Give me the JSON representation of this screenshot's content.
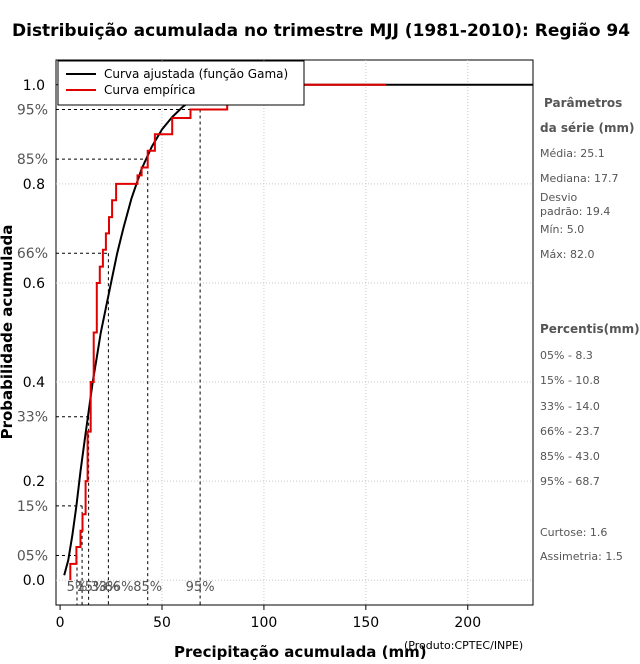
{
  "chart_data": {
    "type": "line",
    "title": "Distribuição acumulada no trimestre MJJ (1981-2010): Região 94",
    "xlabel": "Precipitação acumulada (mm)",
    "ylabel": "Probabilidade acumulada",
    "source": "(Produto:CPTEC/INPE)",
    "xlim": [
      -2,
      232
    ],
    "ylim": [
      -0.05,
      1.05
    ],
    "x_ticks": [
      0,
      50,
      100,
      150,
      200
    ],
    "y_ticks": [
      0.0,
      0.2,
      0.4,
      0.6,
      0.8,
      1.0
    ],
    "y_tick_labels": [
      "0.0",
      "0.2",
      "0.4",
      "0.6",
      "0.8",
      "1.0"
    ],
    "series": [
      {
        "name": "Curva ajustada (função Gama)",
        "color": "#000000",
        "x": [
          2,
          4,
          6,
          8,
          10,
          12,
          14,
          16,
          18,
          20,
          22,
          25,
          28,
          31,
          35,
          40,
          45,
          50,
          55,
          60,
          65,
          70,
          75,
          80,
          90,
          100,
          120,
          140,
          160,
          180,
          200,
          232
        ],
        "y": [
          0.01,
          0.04,
          0.09,
          0.15,
          0.22,
          0.28,
          0.34,
          0.4,
          0.45,
          0.5,
          0.54,
          0.6,
          0.66,
          0.71,
          0.77,
          0.83,
          0.875,
          0.91,
          0.935,
          0.955,
          0.97,
          0.98,
          0.986,
          0.99,
          0.996,
          0.998,
          1.0,
          1.0,
          1.0,
          1.0,
          1.0,
          1.0
        ]
      },
      {
        "name": "Curva empírica",
        "color": "#e00000",
        "steps_x": [
          5.0,
          8.0,
          10.0,
          11.0,
          12.5,
          13.5,
          15.0,
          16.5,
          18.0,
          19.5,
          21.0,
          22.5,
          24.0,
          25.5,
          27.5,
          38.0,
          40.0,
          43.0,
          46.5,
          55.0,
          64.0,
          78.0,
          82.0,
          160.0
        ],
        "steps_y": [
          0.033,
          0.067,
          0.1,
          0.133,
          0.2,
          0.3,
          0.4,
          0.5,
          0.6,
          0.633,
          0.667,
          0.7,
          0.733,
          0.767,
          0.8,
          0.817,
          0.833,
          0.867,
          0.9,
          0.933,
          0.95,
          0.95,
          1.0,
          1.0
        ]
      }
    ],
    "percentile_markers": [
      {
        "label": "05%",
        "x_label": "5%",
        "prob": 0.05,
        "value": 8.3
      },
      {
        "label": "15%",
        "x_label": "15%",
        "prob": 0.15,
        "value": 10.8
      },
      {
        "label": "33%",
        "x_label": "33%",
        "prob": 0.33,
        "value": 14.0
      },
      {
        "label": "66%",
        "x_label": "66%",
        "prob": 0.66,
        "value": 23.7
      },
      {
        "label": "85%",
        "x_label": "85%",
        "prob": 0.85,
        "value": 43.0
      },
      {
        "label": "95%",
        "x_label": "95%",
        "prob": 0.95,
        "value": 68.7
      }
    ],
    "legend": {
      "position": "top-left",
      "items": [
        {
          "label": "Curva ajustada (função Gama)",
          "color": "#000000"
        },
        {
          "label": "Curva empírica",
          "color": "#e00000"
        }
      ]
    },
    "grid": true
  },
  "side_panel": {
    "params_title_1": "Parâmetros",
    "params_title_2": "da série (mm)",
    "media": "Média: 25.1",
    "mediana": "Mediana: 17.7",
    "desvio_1": "Desvio",
    "desvio_2": "padrão: 19.4",
    "min": "Mín: 5.0",
    "max": "Máx: 82.0",
    "percentis_title": "Percentis(mm)",
    "p05": "05% - 8.3",
    "p15": "15% - 10.8",
    "p33": "33% - 14.0",
    "p66": "66% - 23.7",
    "p85": "85% - 43.0",
    "p95": "95% - 68.7",
    "curtose": "Curtose: 1.6",
    "assimetria": "Assimetria: 1.5"
  }
}
